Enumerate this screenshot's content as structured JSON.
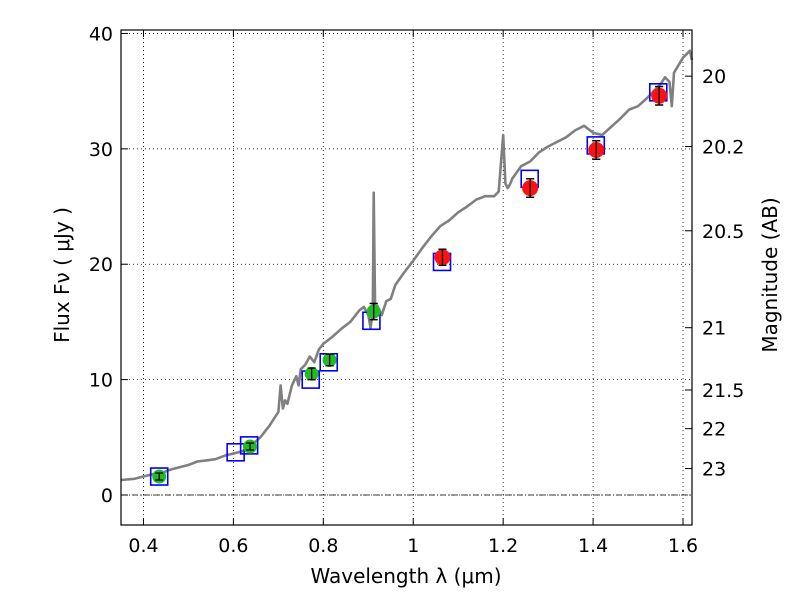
{
  "chart_data": {
    "type": "scatter",
    "xlabel": "Wavelength  λ (μm)",
    "ylabel": "Flux  Fν  ( μJy )",
    "y2label": "Magnitude (AB)",
    "xlim": [
      0.35,
      1.62
    ],
    "ylim": [
      -2.6,
      40.3
    ],
    "grid": true,
    "x_ticks": [
      {
        "value": 0.4,
        "label": "0.4"
      },
      {
        "value": 0.6,
        "label": "0.6"
      },
      {
        "value": 0.8,
        "label": "0.8"
      },
      {
        "value": 1.0,
        "label": "1"
      },
      {
        "value": 1.2,
        "label": "1.2"
      },
      {
        "value": 1.4,
        "label": "1.4"
      },
      {
        "value": 1.6,
        "label": "1.6"
      }
    ],
    "y_ticks": [
      {
        "value": 0,
        "label": "0"
      },
      {
        "value": 10,
        "label": "10"
      },
      {
        "value": 20,
        "label": "20"
      },
      {
        "value": 30,
        "label": "30"
      },
      {
        "value": 40,
        "label": "40"
      }
    ],
    "y2_ticks": [
      {
        "label": "20",
        "flux": 36.3
      },
      {
        "label": "20.2",
        "flux": 30.2
      },
      {
        "label": "20.5",
        "flux": 22.9
      },
      {
        "label": "21",
        "flux": 14.5
      },
      {
        "label": "21.5",
        "flux": 9.1
      },
      {
        "label": "22",
        "flux": 5.75
      },
      {
        "label": "23",
        "flux": 2.29
      }
    ],
    "colors": {
      "spectrum": "#808080",
      "model": "#0000ff",
      "optical": "#22bb22",
      "nir": "#ff1111",
      "errorbar": "#000000",
      "grid": "#000000"
    },
    "series": [
      {
        "kind": "spectrum",
        "x": [
          0.35,
          0.38,
          0.4,
          0.42,
          0.44,
          0.46,
          0.48,
          0.5,
          0.52,
          0.54,
          0.56,
          0.58,
          0.6,
          0.62,
          0.64,
          0.66,
          0.68,
          0.69,
          0.7,
          0.705,
          0.71,
          0.715,
          0.72,
          0.73,
          0.74,
          0.745,
          0.75,
          0.76,
          0.77,
          0.78,
          0.79,
          0.8,
          0.82,
          0.84,
          0.86,
          0.87,
          0.88,
          0.89,
          0.9,
          0.905,
          0.91,
          0.912,
          0.915,
          0.918,
          0.92,
          0.93,
          0.94,
          0.95,
          0.96,
          0.98,
          1.0,
          1.02,
          1.04,
          1.06,
          1.08,
          1.1,
          1.12,
          1.14,
          1.16,
          1.18,
          1.19,
          1.2,
          1.205,
          1.21,
          1.215,
          1.22,
          1.24,
          1.26,
          1.28,
          1.3,
          1.32,
          1.34,
          1.36,
          1.38,
          1.4,
          1.42,
          1.44,
          1.46,
          1.48,
          1.5,
          1.52,
          1.54,
          1.55,
          1.56,
          1.57,
          1.575,
          1.58,
          1.6,
          1.615,
          1.62
        ],
        "y": [
          1.3,
          1.4,
          1.6,
          1.8,
          1.9,
          2.2,
          2.4,
          2.6,
          2.9,
          3.0,
          3.1,
          3.4,
          3.6,
          3.8,
          4.3,
          5.0,
          6.0,
          6.6,
          7.2,
          9.5,
          7.5,
          8.2,
          7.9,
          9.5,
          10.3,
          9.5,
          10.9,
          11.3,
          12.0,
          11.5,
          12.6,
          13.1,
          13.7,
          14.4,
          15.0,
          15.5,
          16.0,
          16.3,
          15.6,
          14.5,
          15.8,
          26.2,
          16.7,
          15.8,
          16.4,
          15.6,
          16.8,
          17.0,
          18.2,
          19.3,
          20.3,
          21.4,
          22.4,
          23.3,
          23.8,
          24.5,
          25.0,
          25.6,
          25.9,
          25.9,
          26.3,
          31.2,
          27.0,
          26.6,
          26.9,
          27.4,
          28.5,
          28.9,
          29.7,
          30.2,
          30.6,
          31.0,
          31.6,
          32.0,
          31.4,
          31.2,
          31.9,
          32.6,
          33.4,
          33.7,
          34.4,
          35.2,
          35.6,
          36.2,
          35.8,
          33.7,
          36.6,
          37.9,
          38.5,
          37.7
        ]
      },
      {
        "kind": "model",
        "name": "",
        "x": [
          0.435,
          0.605,
          0.635,
          0.772,
          0.812,
          0.907,
          1.064,
          1.259,
          1.406,
          1.545
        ],
        "y": [
          1.6,
          3.7,
          4.3,
          10.0,
          11.5,
          15.1,
          20.2,
          27.4,
          30.3,
          34.9
        ]
      },
      {
        "kind": "optical",
        "name": "",
        "x": [
          0.435,
          0.637,
          0.774,
          0.814,
          0.912
        ],
        "y": [
          1.6,
          4.2,
          10.5,
          11.7,
          15.9
        ],
        "err": [
          0.3,
          0.3,
          0.5,
          0.5,
          0.7
        ]
      },
      {
        "kind": "nir",
        "name": "",
        "x": [
          1.065,
          1.26,
          1.407,
          1.547
        ],
        "y": [
          20.6,
          26.6,
          29.9,
          34.6
        ],
        "err": [
          0.7,
          0.8,
          0.8,
          0.8
        ]
      }
    ]
  }
}
